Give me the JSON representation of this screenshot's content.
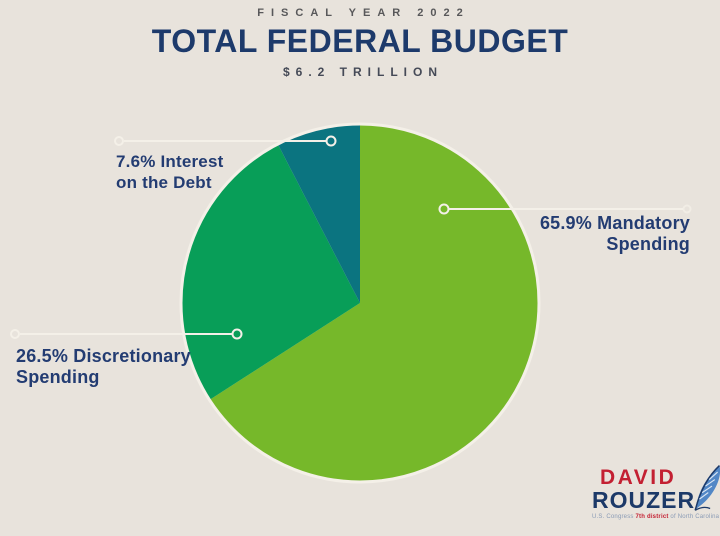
{
  "header": {
    "kicker": "FISCAL YEAR 2022",
    "title": "TOTAL FEDERAL BUDGET",
    "subtitle": "$6.2 TRILLION"
  },
  "chart_data": {
    "type": "pie",
    "title": "Total Federal Budget",
    "subtitle": "Fiscal Year 2022",
    "total": "$6.2 Trillion",
    "start_angle_deg": 0,
    "direction": "clockwise",
    "legend_position": "callout-labels",
    "slices": [
      {
        "label": "Mandatory Spending",
        "pct": 65.9,
        "color": "#76b82a",
        "label_lines": [
          "65.9% Mandatory",
          "Spending"
        ]
      },
      {
        "label": "Discretionary Spending",
        "pct": 26.5,
        "color": "#089e58",
        "label_lines": [
          "26.5% Discretionary",
          "Spending"
        ]
      },
      {
        "label": "Interest on the Debt",
        "pct": 7.6,
        "color": "#0b7480",
        "label_lines": [
          "7.6% Interest",
          "on the Debt"
        ]
      }
    ]
  },
  "logo": {
    "name_top": "DAVID",
    "name_bottom": "ROUZER",
    "tagline_prefix": "U.S. Congress ",
    "tagline_bold": "7th district",
    "tagline_suffix": " of North Carolina"
  },
  "colors": {
    "background": "#e8e3dc",
    "title_navy": "#1d3a6b",
    "label_navy": "#233c72",
    "muted_text": "#58585a",
    "callout_line": "#f4f0e8",
    "logo_red": "#c32032",
    "logo_navy": "#1c3968",
    "feather_blue": "#4a82c4"
  }
}
